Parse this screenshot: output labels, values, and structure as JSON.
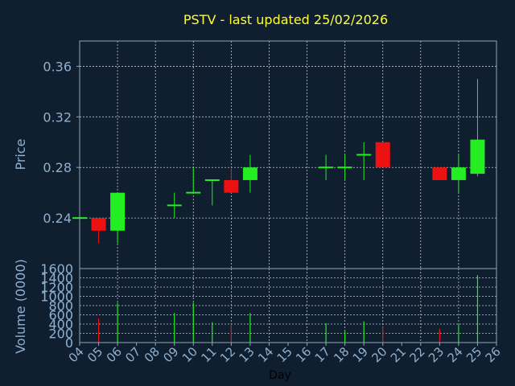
{
  "chart_data": [
    {
      "type": "candlestick",
      "title": "PSTV - last updated 25/02/2026",
      "ylabel": "Price",
      "ylim": [
        0.2,
        0.38
      ],
      "yticks": [
        "0.24",
        "0.28",
        "0.32",
        "0.36"
      ],
      "grid": true,
      "candles": [
        {
          "day": 4,
          "open": 0.24,
          "high": 0.24,
          "low": 0.24,
          "close": 0.24
        },
        {
          "day": 5,
          "open": 0.24,
          "high": 0.24,
          "low": 0.22,
          "close": 0.23
        },
        {
          "day": 6,
          "open": 0.23,
          "high": 0.26,
          "low": 0.22,
          "close": 0.26
        },
        {
          "day": 9,
          "open": 0.25,
          "high": 0.26,
          "low": 0.24,
          "close": 0.25
        },
        {
          "day": 10,
          "open": 0.26,
          "high": 0.28,
          "low": 0.26,
          "close": 0.26
        },
        {
          "day": 11,
          "open": 0.27,
          "high": 0.27,
          "low": 0.25,
          "close": 0.27
        },
        {
          "day": 12,
          "open": 0.27,
          "high": 0.28,
          "low": 0.26,
          "close": 0.26
        },
        {
          "day": 13,
          "open": 0.27,
          "high": 0.29,
          "low": 0.26,
          "close": 0.28
        },
        {
          "day": 17,
          "open": 0.28,
          "high": 0.29,
          "low": 0.27,
          "close": 0.28
        },
        {
          "day": 18,
          "open": 0.28,
          "high": 0.29,
          "low": 0.27,
          "close": 0.28
        },
        {
          "day": 19,
          "open": 0.29,
          "high": 0.3,
          "low": 0.27,
          "close": 0.29
        },
        {
          "day": 20,
          "open": 0.3,
          "high": 0.3,
          "low": 0.28,
          "close": 0.28
        },
        {
          "day": 23,
          "open": 0.28,
          "high": 0.28,
          "low": 0.27,
          "close": 0.27
        },
        {
          "day": 24,
          "open": 0.27,
          "high": 0.29,
          "low": 0.26,
          "close": 0.28
        },
        {
          "day": 25,
          "open": 0.275,
          "high": 0.35,
          "low": 0.273,
          "close": 0.302
        }
      ]
    },
    {
      "type": "bar",
      "ylabel": "Volume (0000)",
      "xlabel": "Day",
      "ylim": [
        0,
        1600
      ],
      "yticks": [
        "0",
        "200",
        "400",
        "600",
        "800",
        "1000",
        "1200",
        "1400",
        "1600"
      ],
      "categories": [
        "04",
        "05",
        "06",
        "07",
        "08",
        "09",
        "10",
        "11",
        "12",
        "13",
        "14",
        "15",
        "16",
        "17",
        "18",
        "19",
        "20",
        "21",
        "22",
        "23",
        "24",
        "25",
        "26"
      ],
      "grid": true,
      "volumes": [
        {
          "day": 5,
          "value": 520
        },
        {
          "day": 6,
          "value": 860
        },
        {
          "day": 9,
          "value": 640
        },
        {
          "day": 10,
          "value": 860
        },
        {
          "day": 11,
          "value": 440
        },
        {
          "day": 12,
          "value": 400
        },
        {
          "day": 13,
          "value": 640
        },
        {
          "day": 17,
          "value": 420
        },
        {
          "day": 18,
          "value": 240
        },
        {
          "day": 19,
          "value": 460
        },
        {
          "day": 20,
          "value": 360
        },
        {
          "day": 23,
          "value": 300
        },
        {
          "day": 24,
          "value": 380
        },
        {
          "day": 25,
          "value": 1460
        }
      ]
    }
  ],
  "colors": {
    "background": "#0f1f30",
    "axis_text": "#8fb0d0",
    "title": "#ffff33",
    "up": "#22ee22",
    "down": "#ee1111",
    "grid": "#c0c8d0",
    "frame": "#8fa7c0",
    "xlabel": "#000000"
  }
}
